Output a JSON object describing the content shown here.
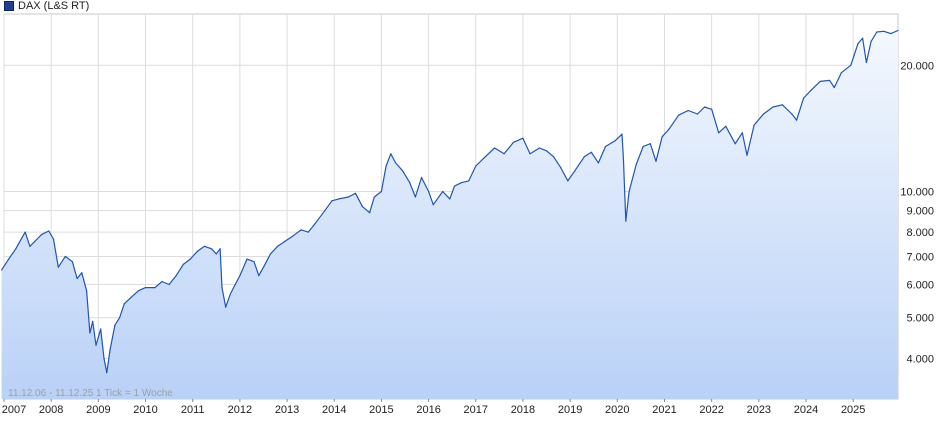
{
  "legend": {
    "label": "DAX (L&S RT)",
    "color": "#1f3f8f"
  },
  "note": "11.12.06 - 11.12.25    1 Tick = 1 Woche",
  "chart_data": {
    "type": "area",
    "scale": "log",
    "ylim": [
      3200,
      26500
    ],
    "xlim": [
      2007.0,
      2025.95
    ],
    "yticks": [
      {
        "value": 4000,
        "label": "4.000"
      },
      {
        "value": 5000,
        "label": "5.000"
      },
      {
        "value": 6000,
        "label": "6.000"
      },
      {
        "value": 7000,
        "label": "7.000"
      },
      {
        "value": 8000,
        "label": "8.000"
      },
      {
        "value": 9000,
        "label": "9.000"
      },
      {
        "value": 10000,
        "label": "10.000"
      },
      {
        "value": 20000,
        "label": "20.000"
      }
    ],
    "xticks": [
      {
        "value": 2007,
        "label": "2007"
      },
      {
        "value": 2008,
        "label": "2008"
      },
      {
        "value": 2009,
        "label": "2009"
      },
      {
        "value": 2010,
        "label": "2010"
      },
      {
        "value": 2011,
        "label": "2011"
      },
      {
        "value": 2012,
        "label": "2012"
      },
      {
        "value": 2013,
        "label": "2013"
      },
      {
        "value": 2014,
        "label": "2014"
      },
      {
        "value": 2015,
        "label": "2015"
      },
      {
        "value": 2016,
        "label": "2016"
      },
      {
        "value": 2017,
        "label": "2017"
      },
      {
        "value": 2018,
        "label": "2018"
      },
      {
        "value": 2019,
        "label": "2019"
      },
      {
        "value": 2020,
        "label": "2020"
      },
      {
        "value": 2021,
        "label": "2021"
      },
      {
        "value": 2022,
        "label": "2022"
      },
      {
        "value": 2023,
        "label": "2023"
      },
      {
        "value": 2024,
        "label": "2024"
      },
      {
        "value": 2025,
        "label": "2025"
      }
    ],
    "series": [
      {
        "name": "DAX (L&S RT)",
        "points": [
          [
            2006.95,
            6500
          ],
          [
            2007.1,
            6900
          ],
          [
            2007.25,
            7300
          ],
          [
            2007.45,
            8000
          ],
          [
            2007.55,
            7400
          ],
          [
            2007.65,
            7600
          ],
          [
            2007.8,
            7900
          ],
          [
            2007.95,
            8050
          ],
          [
            2008.05,
            7700
          ],
          [
            2008.15,
            6600
          ],
          [
            2008.3,
            7000
          ],
          [
            2008.45,
            6800
          ],
          [
            2008.55,
            6200
          ],
          [
            2008.65,
            6400
          ],
          [
            2008.75,
            5800
          ],
          [
            2008.82,
            4600
          ],
          [
            2008.88,
            4900
          ],
          [
            2008.95,
            4300
          ],
          [
            2009.05,
            4700
          ],
          [
            2009.12,
            4000
          ],
          [
            2009.18,
            3700
          ],
          [
            2009.25,
            4200
          ],
          [
            2009.35,
            4800
          ],
          [
            2009.45,
            5000
          ],
          [
            2009.55,
            5400
          ],
          [
            2009.7,
            5600
          ],
          [
            2009.85,
            5800
          ],
          [
            2010.0,
            5900
          ],
          [
            2010.2,
            5900
          ],
          [
            2010.35,
            6100
          ],
          [
            2010.5,
            6000
          ],
          [
            2010.65,
            6300
          ],
          [
            2010.8,
            6700
          ],
          [
            2010.95,
            6900
          ],
          [
            2011.1,
            7200
          ],
          [
            2011.25,
            7400
          ],
          [
            2011.4,
            7300
          ],
          [
            2011.5,
            7100
          ],
          [
            2011.58,
            7300
          ],
          [
            2011.62,
            5900
          ],
          [
            2011.7,
            5300
          ],
          [
            2011.8,
            5700
          ],
          [
            2011.9,
            6000
          ],
          [
            2012.0,
            6300
          ],
          [
            2012.15,
            6900
          ],
          [
            2012.3,
            6800
          ],
          [
            2012.4,
            6300
          ],
          [
            2012.5,
            6600
          ],
          [
            2012.65,
            7100
          ],
          [
            2012.8,
            7400
          ],
          [
            2012.95,
            7600
          ],
          [
            2013.1,
            7800
          ],
          [
            2013.3,
            8100
          ],
          [
            2013.45,
            8000
          ],
          [
            2013.6,
            8400
          ],
          [
            2013.8,
            9000
          ],
          [
            2013.95,
            9500
          ],
          [
            2014.1,
            9600
          ],
          [
            2014.3,
            9700
          ],
          [
            2014.45,
            9900
          ],
          [
            2014.6,
            9200
          ],
          [
            2014.75,
            8900
          ],
          [
            2014.85,
            9700
          ],
          [
            2015.0,
            10000
          ],
          [
            2015.1,
            11500
          ],
          [
            2015.2,
            12300
          ],
          [
            2015.3,
            11700
          ],
          [
            2015.45,
            11200
          ],
          [
            2015.6,
            10500
          ],
          [
            2015.72,
            9700
          ],
          [
            2015.85,
            10800
          ],
          [
            2016.0,
            10000
          ],
          [
            2016.1,
            9300
          ],
          [
            2016.3,
            10000
          ],
          [
            2016.45,
            9600
          ],
          [
            2016.55,
            10300
          ],
          [
            2016.7,
            10500
          ],
          [
            2016.85,
            10600
          ],
          [
            2017.0,
            11500
          ],
          [
            2017.2,
            12100
          ],
          [
            2017.4,
            12700
          ],
          [
            2017.6,
            12300
          ],
          [
            2017.8,
            13100
          ],
          [
            2018.0,
            13400
          ],
          [
            2018.15,
            12300
          ],
          [
            2018.35,
            12700
          ],
          [
            2018.5,
            12500
          ],
          [
            2018.65,
            12100
          ],
          [
            2018.8,
            11400
          ],
          [
            2018.95,
            10600
          ],
          [
            2019.1,
            11200
          ],
          [
            2019.3,
            12100
          ],
          [
            2019.45,
            12400
          ],
          [
            2019.6,
            11700
          ],
          [
            2019.75,
            12800
          ],
          [
            2019.95,
            13200
          ],
          [
            2020.1,
            13700
          ],
          [
            2020.13,
            12000
          ],
          [
            2020.18,
            8500
          ],
          [
            2020.25,
            10000
          ],
          [
            2020.4,
            11600
          ],
          [
            2020.55,
            12800
          ],
          [
            2020.7,
            13000
          ],
          [
            2020.82,
            11800
          ],
          [
            2020.95,
            13500
          ],
          [
            2021.1,
            14100
          ],
          [
            2021.3,
            15200
          ],
          [
            2021.5,
            15600
          ],
          [
            2021.7,
            15300
          ],
          [
            2021.85,
            15900
          ],
          [
            2022.0,
            15700
          ],
          [
            2022.15,
            13800
          ],
          [
            2022.3,
            14300
          ],
          [
            2022.5,
            13000
          ],
          [
            2022.65,
            13800
          ],
          [
            2022.75,
            12200
          ],
          [
            2022.9,
            14400
          ],
          [
            2023.1,
            15300
          ],
          [
            2023.3,
            15900
          ],
          [
            2023.5,
            16100
          ],
          [
            2023.7,
            15300
          ],
          [
            2023.8,
            14800
          ],
          [
            2023.95,
            16700
          ],
          [
            2024.1,
            17400
          ],
          [
            2024.3,
            18300
          ],
          [
            2024.5,
            18400
          ],
          [
            2024.6,
            17700
          ],
          [
            2024.75,
            19200
          ],
          [
            2024.95,
            20000
          ],
          [
            2025.1,
            22500
          ],
          [
            2025.2,
            23200
          ],
          [
            2025.28,
            20300
          ],
          [
            2025.38,
            22800
          ],
          [
            2025.5,
            24000
          ],
          [
            2025.65,
            24100
          ],
          [
            2025.8,
            23800
          ],
          [
            2025.95,
            24200
          ]
        ]
      }
    ]
  }
}
